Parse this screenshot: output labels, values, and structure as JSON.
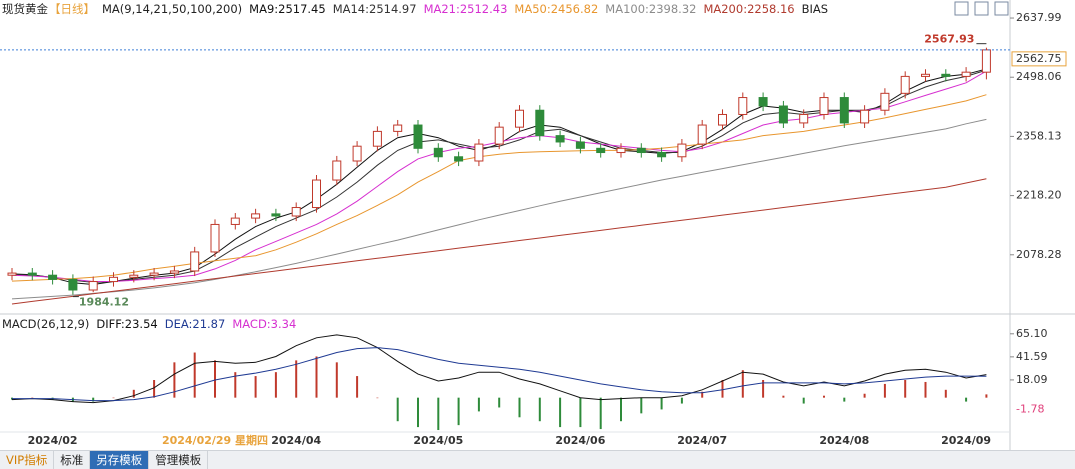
{
  "chart_data": [
    {
      "type": "candlestick",
      "title": "现货黄金",
      "subtitle": "【日线】",
      "indicator": "MA(9,14,21,50,100,200)",
      "extra_indicator": "BIAS",
      "categories": [
        null,
        null,
        "2024/02",
        null,
        null,
        null,
        null,
        null,
        null,
        null,
        "2024/02/29 星期四",
        null,
        null,
        null,
        "2024/04",
        null,
        null,
        null,
        null,
        null,
        null,
        "2024/05",
        null,
        null,
        null,
        null,
        null,
        null,
        "2024/06",
        null,
        null,
        null,
        null,
        null,
        "2024/07",
        null,
        null,
        null,
        null,
        null,
        null,
        "2024/08",
        null,
        null,
        null,
        null,
        null,
        "2024/09",
        null
      ],
      "category_colors": [
        "#333",
        "#333",
        "#333",
        "#333",
        "#333",
        "#333",
        "#333",
        "#333",
        "#333",
        "#333",
        "#e8a33c",
        "#333",
        "#333",
        "#333",
        "#333",
        "#333",
        "#333",
        "#333",
        "#333",
        "#333",
        "#333",
        "#333",
        "#333",
        "#333",
        "#333",
        "#333",
        "#333",
        "#333",
        "#333",
        "#333",
        "#333",
        "#333",
        "#333",
        "#333",
        "#333",
        "#333",
        "#333",
        "#333",
        "#333",
        "#333",
        "#333",
        "#333",
        "#333",
        "#333",
        "#333",
        "#333",
        "#333",
        "#333",
        "#333"
      ],
      "open": [
        2030,
        2035,
        2030,
        2020,
        1995,
        2015,
        2025,
        2030,
        2035,
        2040,
        2085,
        2150,
        2165,
        2175,
        2170,
        2190,
        2255,
        2300,
        2335,
        2370,
        2385,
        2330,
        2310,
        2300,
        2340,
        2380,
        2420,
        2360,
        2345,
        2330,
        2320,
        2330,
        2320,
        2310,
        2340,
        2385,
        2410,
        2450,
        2430,
        2390,
        2410,
        2450,
        2390,
        2420,
        2460,
        2500,
        2505,
        2500,
        2510
      ],
      "high": [
        2047,
        2047,
        2042,
        2032,
        2027,
        2037,
        2042,
        2047,
        2052,
        2097,
        2162,
        2177,
        2187,
        2187,
        2202,
        2267,
        2312,
        2347,
        2382,
        2397,
        2397,
        2342,
        2322,
        2352,
        2392,
        2432,
        2432,
        2372,
        2357,
        2342,
        2342,
        2342,
        2332,
        2352,
        2397,
        2422,
        2462,
        2462,
        2442,
        2422,
        2462,
        2462,
        2432,
        2472,
        2512,
        2517,
        2517,
        2522,
        2567.93
      ],
      "low": [
        2018,
        2018,
        2008,
        1984.12,
        1990,
        2003,
        2013,
        2018,
        2023,
        2028,
        2073,
        2138,
        2153,
        2158,
        2158,
        2178,
        2243,
        2288,
        2323,
        2358,
        2318,
        2298,
        2288,
        2288,
        2328,
        2368,
        2348,
        2333,
        2318,
        2308,
        2308,
        2308,
        2298,
        2298,
        2328,
        2373,
        2398,
        2418,
        2378,
        2378,
        2398,
        2378,
        2378,
        2408,
        2448,
        2488,
        2488,
        2488,
        2493
      ],
      "close": [
        2035,
        2030,
        2020,
        1995,
        2015,
        2025,
        2030,
        2035,
        2040,
        2085,
        2150,
        2165,
        2175,
        2170,
        2190,
        2255,
        2300,
        2335,
        2370,
        2385,
        2330,
        2310,
        2300,
        2340,
        2380,
        2420,
        2360,
        2345,
        2330,
        2320,
        2330,
        2320,
        2310,
        2340,
        2385,
        2410,
        2450,
        2430,
        2390,
        2410,
        2450,
        2390,
        2420,
        2460,
        2500,
        2505,
        2500,
        2510,
        2562.75
      ],
      "up_color": "#c0392b",
      "down_color": "#2e8b3a",
      "last_price_color": "#3d7fd6",
      "series": [
        {
          "name": "MA9:2517.45",
          "color": "#111111",
          "values": [
            2033,
            2031,
            2024,
            2012,
            2008,
            2015,
            2023,
            2030,
            2035,
            2048,
            2080,
            2115,
            2145,
            2165,
            2180,
            2210,
            2245,
            2285,
            2325,
            2355,
            2365,
            2355,
            2335,
            2325,
            2340,
            2370,
            2385,
            2380,
            2360,
            2340,
            2325,
            2322,
            2318,
            2322,
            2345,
            2375,
            2410,
            2430,
            2425,
            2415,
            2420,
            2420,
            2415,
            2435,
            2465,
            2488,
            2500,
            2505,
            2517.45
          ]
        },
        {
          "name": "MA14:2514.97",
          "color": "#333333",
          "values": [
            2032,
            2030,
            2025,
            2018,
            2013,
            2015,
            2020,
            2025,
            2030,
            2040,
            2065,
            2095,
            2120,
            2145,
            2165,
            2185,
            2215,
            2250,
            2290,
            2325,
            2345,
            2350,
            2340,
            2330,
            2335,
            2350,
            2370,
            2375,
            2360,
            2345,
            2330,
            2325,
            2320,
            2320,
            2335,
            2360,
            2390,
            2410,
            2415,
            2410,
            2415,
            2420,
            2420,
            2430,
            2455,
            2475,
            2490,
            2500,
            2514.97
          ]
        },
        {
          "name": "MA21:2512.43",
          "color": "#d62fd0",
          "values": [
            2030,
            2028,
            2025,
            2020,
            2015,
            2015,
            2018,
            2022,
            2025,
            2030,
            2045,
            2065,
            2090,
            2110,
            2130,
            2150,
            2175,
            2205,
            2240,
            2275,
            2305,
            2320,
            2330,
            2335,
            2345,
            2355,
            2360,
            2355,
            2345,
            2340,
            2335,
            2330,
            2325,
            2322,
            2330,
            2345,
            2365,
            2385,
            2395,
            2400,
            2410,
            2415,
            2420,
            2425,
            2440,
            2455,
            2470,
            2485,
            2512.43
          ]
        },
        {
          "name": "MA50:2456.82",
          "color": "#e8962e",
          "values": [
            2016,
            2018,
            2020,
            2022,
            2025,
            2030,
            2037,
            2045,
            2051,
            2058,
            2064,
            2070,
            2076,
            2090,
            2108,
            2128,
            2150,
            2171,
            2195,
            2220,
            2250,
            2275,
            2301,
            2310,
            2316,
            2320,
            2322,
            2323,
            2324,
            2325,
            2325,
            2327,
            2330,
            2335,
            2340,
            2345,
            2350,
            2360,
            2365,
            2370,
            2378,
            2385,
            2393,
            2402,
            2412,
            2422,
            2432,
            2442,
            2456.82
          ]
        },
        {
          "name": "MA100:2398.32",
          "color": "#8c8c8c",
          "values": [
            1974,
            1977,
            1980,
            1983,
            1987,
            1991,
            1995,
            2000,
            2006,
            2012,
            2020,
            2029,
            2038,
            2048,
            2058,
            2069,
            2080,
            2091,
            2102,
            2113,
            2125,
            2137,
            2149,
            2161,
            2172,
            2183,
            2194,
            2205,
            2215,
            2225,
            2235,
            2245,
            2255,
            2264,
            2273,
            2282,
            2291,
            2300,
            2309,
            2318,
            2327,
            2336,
            2344,
            2352,
            2360,
            2368,
            2376,
            2388,
            2398.32
          ]
        },
        {
          "name": "MA200:2258.16",
          "color": "#b03a2e",
          "values": [
            1962,
            1968,
            1974,
            1980,
            1986,
            1992,
            1998,
            2004,
            2010,
            2016,
            2022,
            2028,
            2034,
            2040,
            2046,
            2052,
            2058,
            2064,
            2070,
            2076,
            2082,
            2088,
            2094,
            2100,
            2106,
            2112,
            2118,
            2124,
            2130,
            2136,
            2142,
            2148,
            2154,
            2160,
            2166,
            2172,
            2178,
            2184,
            2190,
            2196,
            2202,
            2208,
            2214,
            2220,
            2226,
            2232,
            2238,
            2248,
            2258.16
          ]
        }
      ],
      "ylim": [
        1943,
        2657
      ],
      "yticks": [
        2078.28,
        {
          "value": 2218.2,
          "label": "2218.20"
        },
        2358.13,
        2498.06,
        2637.99
      ]
    },
    {
      "type": "macd",
      "title": "MACD(26,12,9)",
      "series": [
        {
          "name": "DIFF:23.54",
          "color": "#111111",
          "values": [
            -2,
            -1,
            -2,
            -4,
            -5,
            -3,
            2,
            10,
            24,
            35,
            37,
            35,
            36,
            42,
            53,
            61,
            64,
            61,
            51,
            37,
            24,
            17,
            20,
            26,
            26,
            19,
            14,
            7,
            0,
            -2,
            -1,
            0,
            0,
            2,
            8,
            17,
            26,
            24,
            16,
            12,
            16,
            12,
            17,
            24,
            28,
            29,
            26,
            20,
            23.54
          ]
        },
        {
          "name": "DEA:21.87",
          "color": "#1f3a93",
          "values": [
            -1,
            -1,
            -1,
            -2,
            -3,
            -3,
            -2,
            1,
            6,
            12,
            18,
            22,
            25,
            29,
            34,
            40,
            46,
            50,
            51,
            49,
            44,
            39,
            35,
            33,
            31,
            29,
            26,
            22,
            18,
            14,
            11,
            8,
            6,
            5,
            5,
            8,
            12,
            15,
            15,
            15,
            15,
            14,
            15,
            17,
            19,
            21,
            22,
            22,
            21.87
          ]
        }
      ],
      "histogram": {
        "name": "MACD:3.34",
        "color": "#d62fd0",
        "up_color": "#c0392b",
        "down_color": "#2e8b3a",
        "values": [
          -2,
          0,
          -2,
          -4,
          -4,
          0,
          8,
          18,
          36,
          46,
          38,
          26,
          22,
          26,
          38,
          42,
          36,
          22,
          0,
          -24,
          -30,
          -33,
          -28,
          -14,
          -10,
          -20,
          -24,
          -30,
          -30,
          -32,
          -24,
          -16,
          -12,
          -6,
          6,
          18,
          28,
          18,
          2,
          -6,
          2,
          -4,
          4,
          14,
          18,
          16,
          8,
          -4,
          3.34
        ]
      },
      "annotations": [
        {
          "value": -1.78,
          "color": "#e0407b"
        }
      ],
      "ylim": [
        -35,
        71
      ],
      "yticks": [
        18.09,
        41.59,
        {
          "value": 65.1,
          "label": "65.10"
        }
      ]
    }
  ],
  "tabs": [
    "VIP指标",
    "标准",
    "另存模板",
    "管理模板"
  ]
}
